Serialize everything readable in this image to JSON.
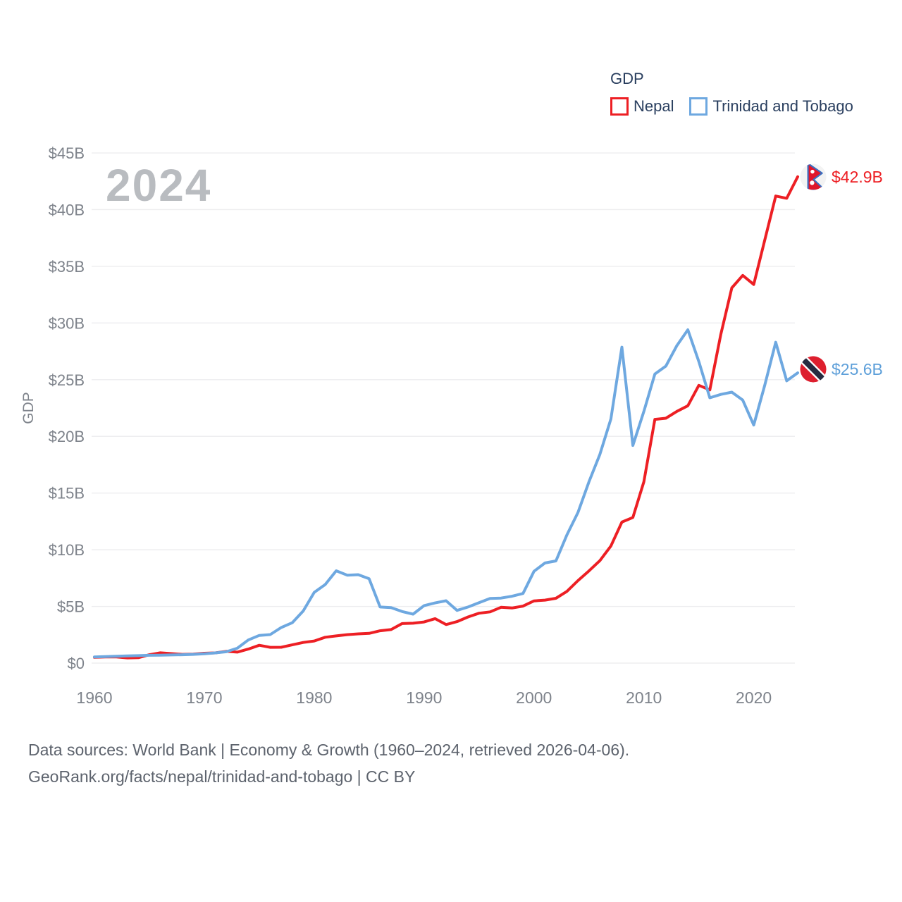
{
  "watermark": "2024",
  "legend": {
    "title": "GDP",
    "items": [
      {
        "label": "Nepal",
        "color": "#ed1f24"
      },
      {
        "label": "Trinidad and Tobago",
        "color": "#6ea8e0"
      }
    ]
  },
  "y_axis": {
    "title": "GDP",
    "tick_labels": [
      "$0",
      "$5B",
      "$10B",
      "$15B",
      "$20B",
      "$25B",
      "$30B",
      "$35B",
      "$40B",
      "$45B"
    ]
  },
  "x_axis": {
    "tick_labels": [
      "1960",
      "1970",
      "1980",
      "1990",
      "2000",
      "2010",
      "2020"
    ]
  },
  "end_labels": [
    {
      "series": "Nepal",
      "text": "$42.9B",
      "color": "#ed1f24",
      "flag": "nepal-flag"
    },
    {
      "series": "Trinidad and Tobago",
      "text": "$25.6B",
      "color": "#5d9fd9",
      "flag": "trinidad-and-tobago-flag"
    }
  ],
  "footer": {
    "line1": "Data sources: World Bank | Economy & Growth (1960–2024, retrieved 2026-04-06).",
    "line2": "GeoRank.org/facts/nepal/trinidad-and-tobago | CC BY"
  },
  "colors": {
    "nepal_line": "#ed1f24",
    "trinidad_line": "#6ea8e0",
    "grid": "#ededef",
    "tick_text": "#7e838b",
    "legend_text": "#2a3f5f",
    "watermark": "#b9bcc0",
    "footer_text": "#5d636d"
  },
  "chart_data": {
    "type": "line",
    "title": "GDP",
    "ylabel": "GDP",
    "xlim": [
      1960,
      2024
    ],
    "ylim": [
      0,
      45
    ],
    "y_tick_step": 5,
    "grid": true,
    "legend_position": "top-right",
    "years": [
      1960,
      1961,
      1962,
      1963,
      1964,
      1965,
      1966,
      1967,
      1968,
      1969,
      1970,
      1971,
      1972,
      1973,
      1974,
      1975,
      1976,
      1977,
      1978,
      1979,
      1980,
      1981,
      1982,
      1983,
      1984,
      1985,
      1986,
      1987,
      1988,
      1989,
      1990,
      1991,
      1992,
      1993,
      1994,
      1995,
      1996,
      1997,
      1998,
      1999,
      2000,
      2001,
      2002,
      2003,
      2004,
      2005,
      2006,
      2007,
      2008,
      2009,
      2010,
      2011,
      2012,
      2013,
      2014,
      2015,
      2016,
      2017,
      2018,
      2019,
      2020,
      2021,
      2022,
      2023,
      2024
    ],
    "series": [
      {
        "name": "Nepal",
        "color": "#ed1f24",
        "unit": "billion USD",
        "values": [
          0.51,
          0.54,
          0.55,
          0.46,
          0.48,
          0.74,
          0.91,
          0.84,
          0.77,
          0.79,
          0.87,
          0.9,
          1.04,
          0.97,
          1.24,
          1.57,
          1.39,
          1.4,
          1.61,
          1.82,
          1.95,
          2.28,
          2.4,
          2.51,
          2.58,
          2.62,
          2.85,
          2.96,
          3.49,
          3.52,
          3.63,
          3.92,
          3.4,
          3.66,
          4.07,
          4.4,
          4.52,
          4.92,
          4.86,
          5.03,
          5.49,
          5.56,
          5.72,
          6.33,
          7.27,
          8.13,
          9.04,
          10.33,
          12.44,
          12.85,
          16.0,
          21.5,
          21.6,
          22.2,
          22.7,
          24.5,
          24.1,
          29.0,
          33.1,
          34.2,
          33.4,
          37.3,
          41.2,
          41.0,
          42.9
        ]
      },
      {
        "name": "Trinidad and Tobago",
        "color": "#6ea8e0",
        "unit": "billion USD",
        "values": [
          0.54,
          0.58,
          0.61,
          0.64,
          0.66,
          0.69,
          0.7,
          0.72,
          0.74,
          0.77,
          0.82,
          0.9,
          1.0,
          1.31,
          2.04,
          2.44,
          2.52,
          3.14,
          3.56,
          4.6,
          6.24,
          6.93,
          8.14,
          7.76,
          7.8,
          7.44,
          4.95,
          4.9,
          4.55,
          4.32,
          5.07,
          5.31,
          5.5,
          4.65,
          4.95,
          5.33,
          5.7,
          5.74,
          5.9,
          6.14,
          8.1,
          8.83,
          9.01,
          11.31,
          13.28,
          15.98,
          18.42,
          21.54,
          27.87,
          19.2,
          22.2,
          25.5,
          26.2,
          28.0,
          29.4,
          26.6,
          23.4,
          23.7,
          23.9,
          23.2,
          21.0,
          24.5,
          28.3,
          24.9,
          25.6
        ]
      }
    ],
    "end_values": {
      "Nepal": "$42.9B",
      "Trinidad and Tobago": "$25.6B"
    }
  }
}
